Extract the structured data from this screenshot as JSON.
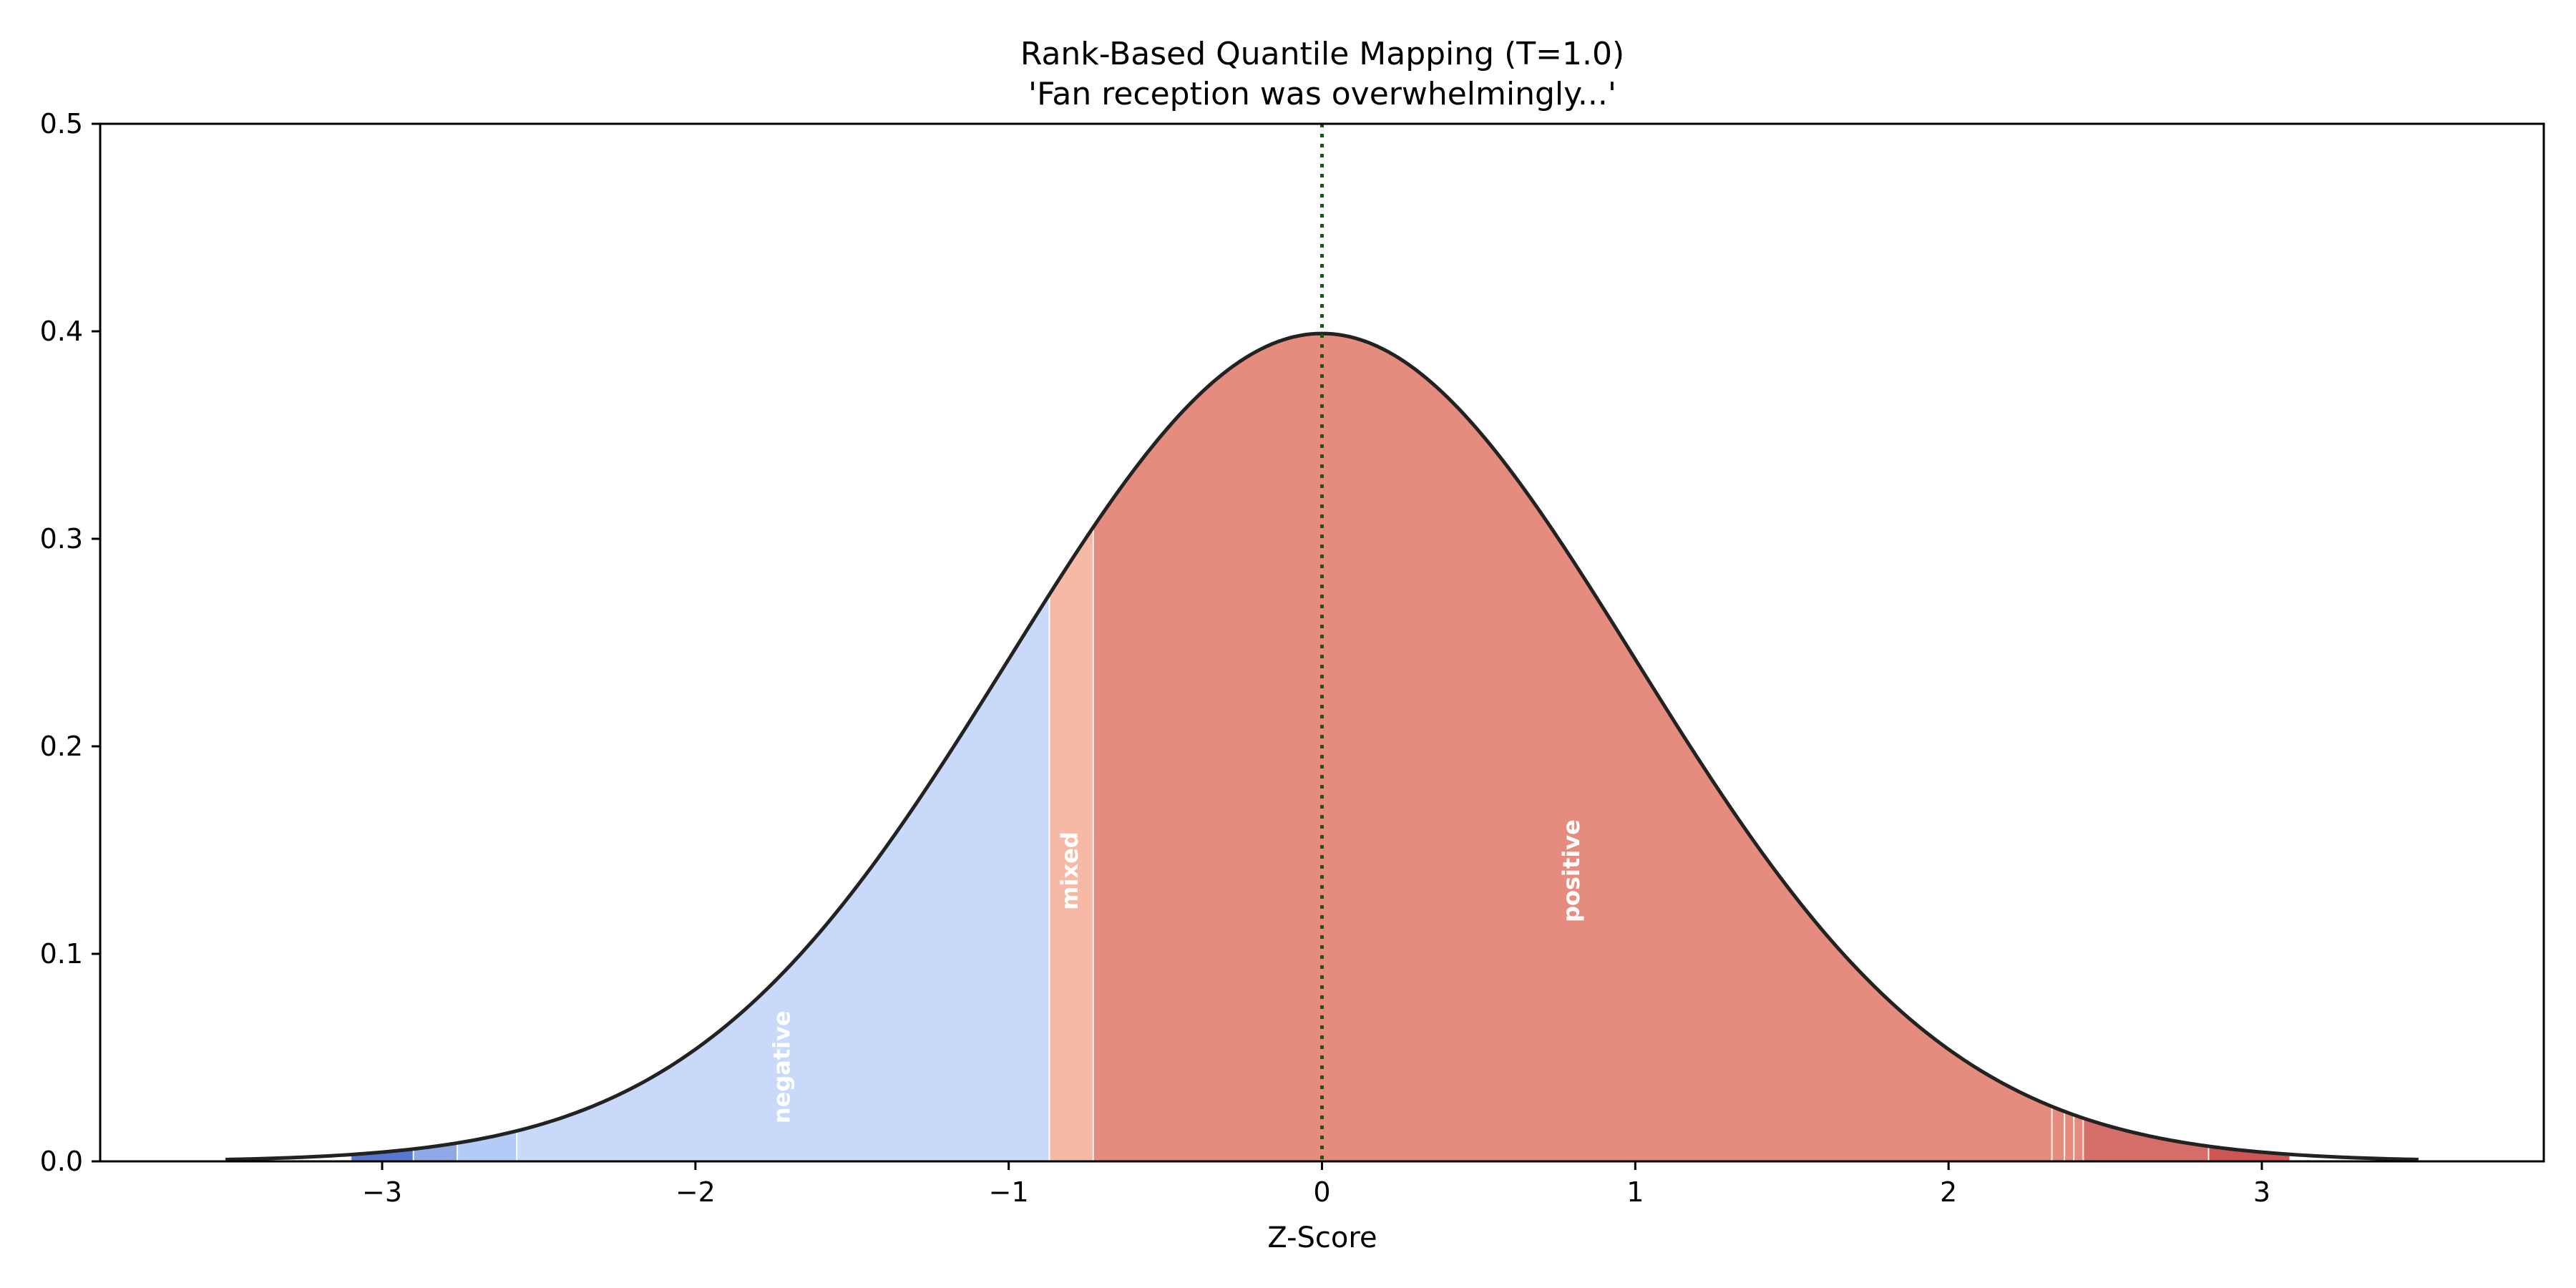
{
  "chart_data": {
    "type": "area",
    "title": "Rank-Based Quantile Mapping (T=1.0)",
    "subtitle": "'Fan reception was overwhelmingly...'",
    "xlabel": "Z-Score",
    "ylabel": "",
    "xlim": [
      -3.9,
      3.9
    ],
    "ylim": [
      0,
      0.5
    ],
    "x_ticks": [
      -3,
      -2,
      -1,
      0,
      1,
      2,
      3
    ],
    "x_tick_labels": [
      "−3",
      "−2",
      "−1",
      "0",
      "1",
      "2",
      "3"
    ],
    "y_ticks": [
      0.0,
      0.1,
      0.2,
      0.3,
      0.4,
      0.5
    ],
    "y_tick_labels": [
      "0.0",
      "0.1",
      "0.2",
      "0.3",
      "0.4",
      "0.5"
    ],
    "curve": {
      "distribution": "standard normal pdf",
      "x_range": [
        -3.5,
        3.5
      ],
      "color": "#222222"
    },
    "marker_line": {
      "x": 0,
      "style": "dotted",
      "color": "#006400"
    },
    "segments": [
      {
        "start": -3.1,
        "end": -2.9,
        "color": "#5a77cf",
        "label": ""
      },
      {
        "start": -2.9,
        "end": -2.76,
        "color": "#8fa9e6",
        "label": ""
      },
      {
        "start": -2.76,
        "end": -2.57,
        "color": "#b4caf7",
        "label": ""
      },
      {
        "start": -2.57,
        "end": -0.87,
        "color": "#c8d9f9",
        "label": "negative"
      },
      {
        "start": -0.87,
        "end": -0.73,
        "color": "#f6b9a5",
        "label": "mixed"
      },
      {
        "start": -0.73,
        "end": 2.33,
        "color": "#e58c7e",
        "label": "positive"
      },
      {
        "start": 2.33,
        "end": 2.37,
        "color": "#e58c7e",
        "label": ""
      },
      {
        "start": 2.37,
        "end": 2.4,
        "color": "#e58c7e",
        "label": ""
      },
      {
        "start": 2.4,
        "end": 2.43,
        "color": "#e58c7e",
        "label": ""
      },
      {
        "start": 2.43,
        "end": 2.83,
        "color": "#d56e68",
        "label": ""
      },
      {
        "start": 2.83,
        "end": 3.09,
        "color": "#cd5556",
        "label": ""
      }
    ]
  }
}
